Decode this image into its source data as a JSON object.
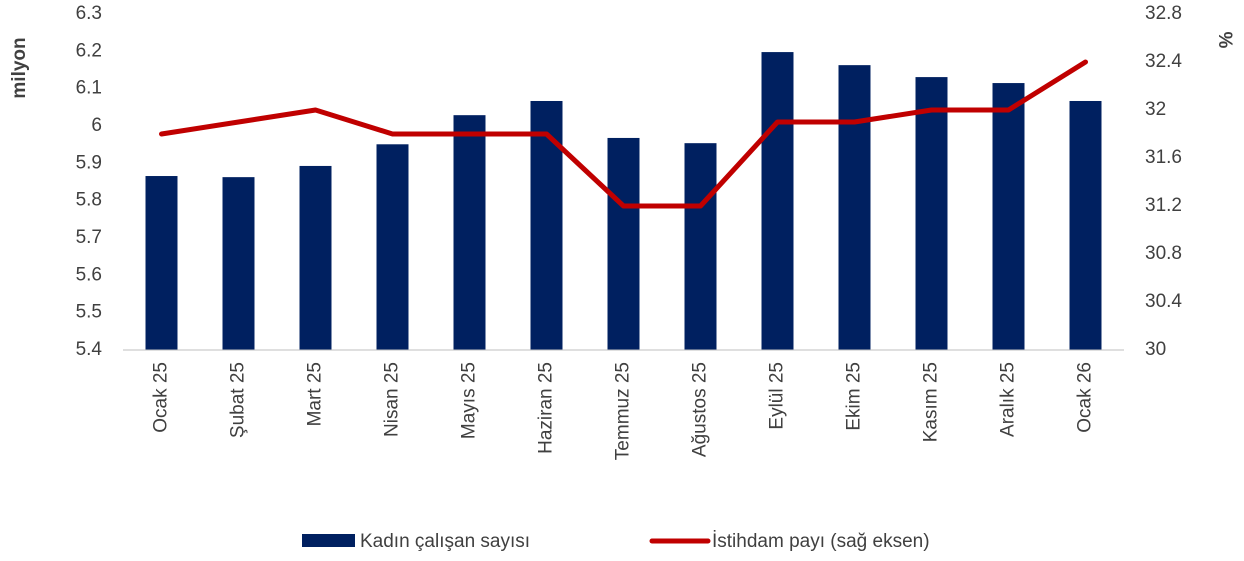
{
  "chart_data": {
    "type": "bar_line",
    "categories": [
      "Ocak 25",
      "Şubat 25",
      "Mart 25",
      "Nisan 25",
      "Mayıs 25",
      "Haziran 25",
      "Temmuz 25",
      "Ağustos 25",
      "Eylül 25",
      "Ekim 25",
      "Kasım 25",
      "Aralık 25",
      "Ocak 26"
    ],
    "series": [
      {
        "name": "Kadın çalışan sayısı",
        "type": "bar",
        "color": "#002060",
        "values": [
          5.866,
          5.863,
          5.893,
          5.951,
          6.029,
          6.067,
          5.968,
          5.954,
          6.198,
          6.163,
          6.131,
          6.115,
          6.067
        ]
      },
      {
        "name": "İstihdam payı (sağ eksen)",
        "type": "line",
        "axis": "y2",
        "color": "#c00000",
        "values": [
          31.8,
          31.9,
          32.0,
          31.8,
          31.8,
          31.8,
          31.2,
          31.2,
          31.9,
          31.9,
          32.0,
          32.0,
          32.4
        ]
      }
    ],
    "ylabel": "milyon",
    "y2label": "%",
    "ylim": [
      5.4,
      6.3
    ],
    "yticks": [
      5.4,
      5.5,
      5.6,
      5.7,
      5.8,
      5.9,
      6,
      6.1,
      6.2,
      6.3
    ],
    "y2lim": [
      30,
      32.8
    ],
    "y2ticks": [
      30,
      30.4,
      30.8,
      31.2,
      31.6,
      32,
      32.4,
      32.8
    ],
    "legend": "bottom"
  }
}
